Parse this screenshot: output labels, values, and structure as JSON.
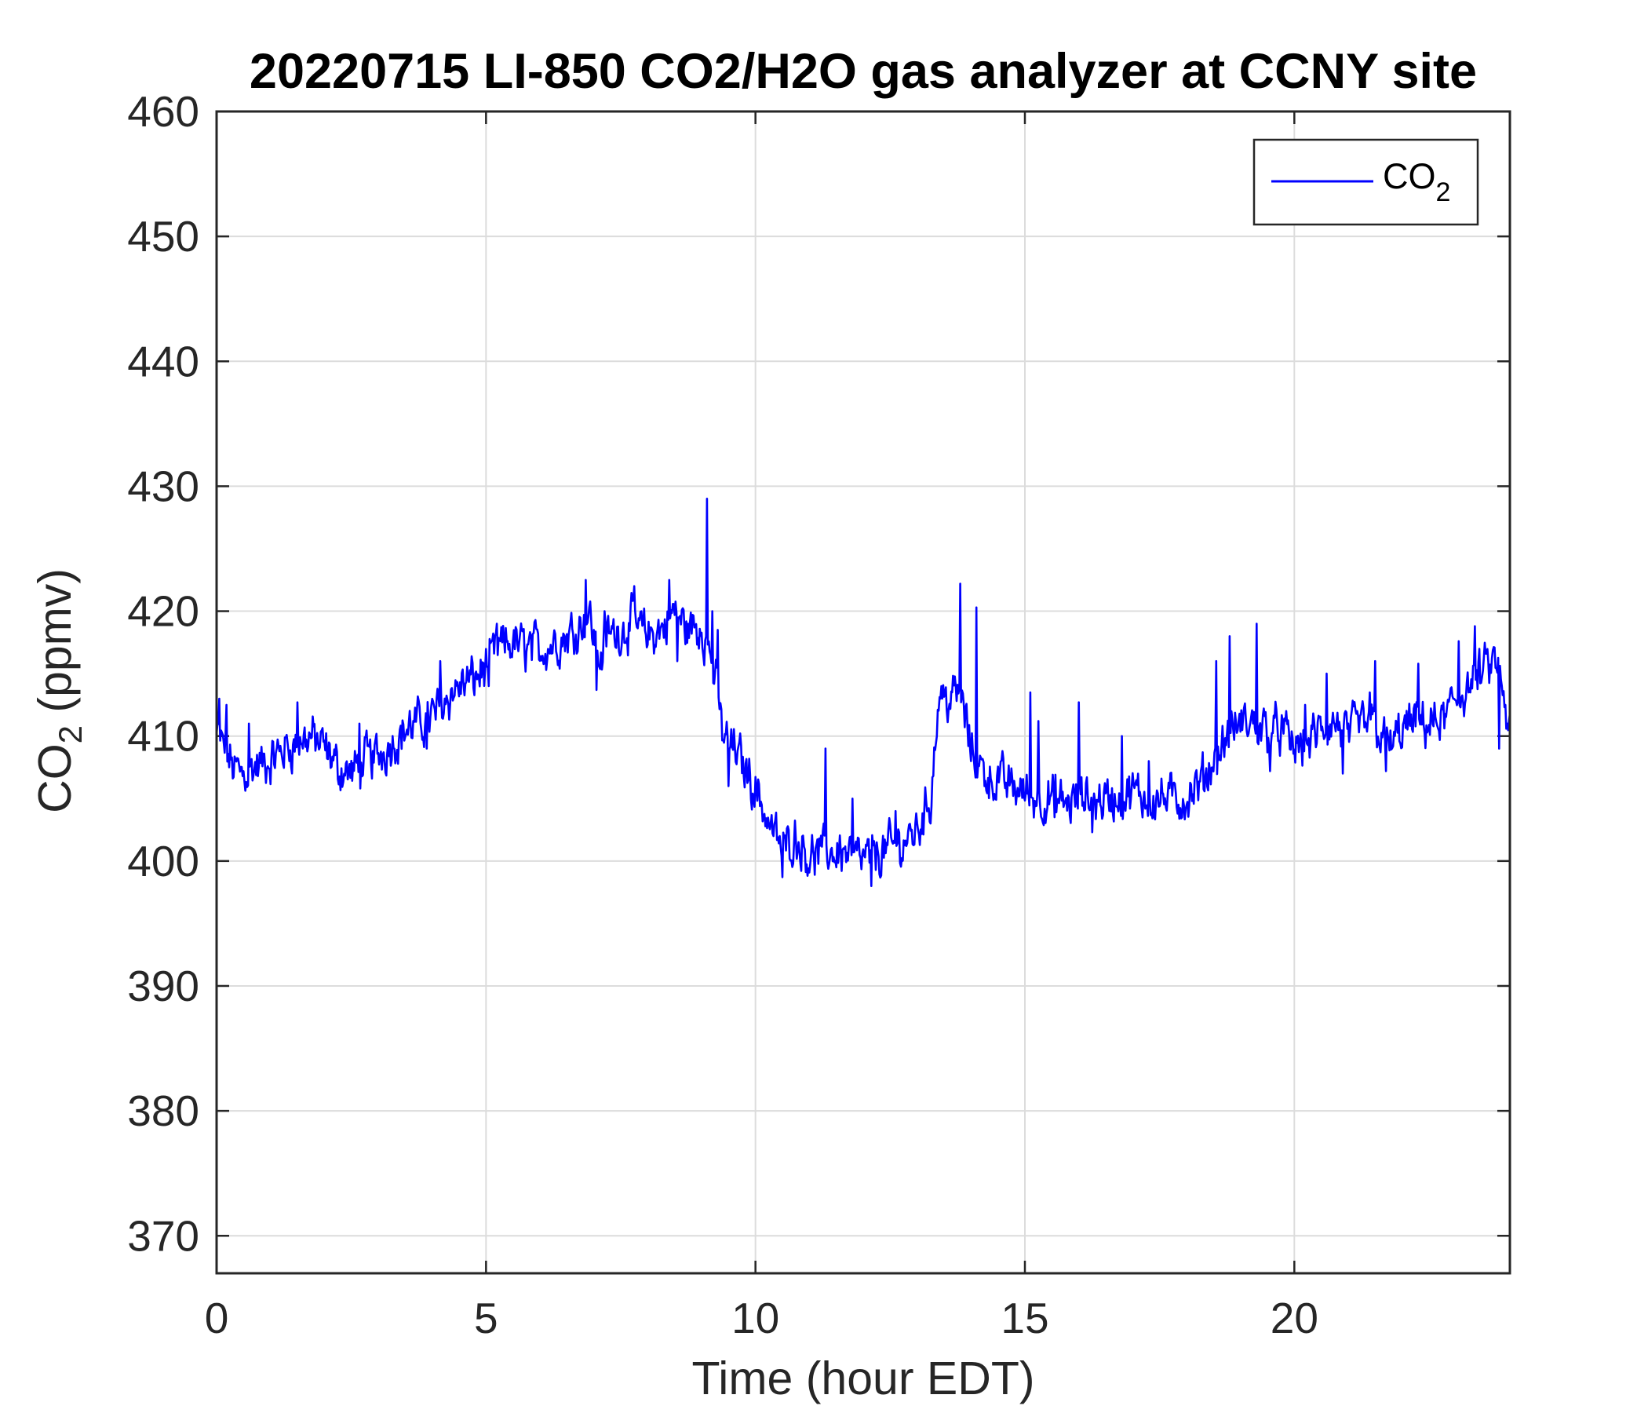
{
  "chart_data": {
    "type": "line",
    "title": "20220715 LI-850 CO2/H2O gas analyzer at CCNY site",
    "xlabel": "Time (hour EDT)",
    "ylabel": {
      "main": "CO",
      "sub": "2",
      "rest": " (ppmv)"
    },
    "xlim": [
      0,
      24
    ],
    "ylim": [
      367,
      460
    ],
    "xticks": [
      0,
      5,
      10,
      15,
      20
    ],
    "yticks": [
      370,
      380,
      390,
      400,
      410,
      420,
      430,
      440,
      450,
      460
    ],
    "grid": true,
    "legend": {
      "position": "top-right",
      "entries": [
        {
          "main": "CO",
          "sub": "2"
        }
      ]
    },
    "series": [
      {
        "color": "#0000ff",
        "x": [
          0,
          0.15,
          0.3,
          0.5,
          0.75,
          1.0,
          1.25,
          1.5,
          1.75,
          2.0,
          2.25,
          2.5,
          2.75,
          3.0,
          3.25,
          3.5,
          3.75,
          4.0,
          4.25,
          4.5,
          4.75,
          5.0,
          5.25,
          5.5,
          5.75,
          6.0,
          6.25,
          6.5,
          6.75,
          6.9,
          7.1,
          7.25,
          7.5,
          7.75,
          8.0,
          8.25,
          8.5,
          8.75,
          9.0,
          9.2,
          9.4,
          9.6,
          9.8,
          10.0,
          10.25,
          10.5,
          10.75,
          11.0,
          11.25,
          11.5,
          11.75,
          12.0,
          12.25,
          12.5,
          12.75,
          13.0,
          13.25,
          13.4,
          13.6,
          13.8,
          14.0,
          14.25,
          14.5,
          14.75,
          15.0,
          15.25,
          15.5,
          15.75,
          16.0,
          16.25,
          16.5,
          16.75,
          17.0,
          17.25,
          17.5,
          17.75,
          18.0,
          18.25,
          18.5,
          18.75,
          19.0,
          19.25,
          19.5,
          19.75,
          20.0,
          20.25,
          20.5,
          20.75,
          21.0,
          21.25,
          21.5,
          21.75,
          22.0,
          22.25,
          22.5,
          22.75,
          23.0,
          23.25,
          23.5,
          23.75,
          24.0
        ],
        "values": [
          410,
          409,
          407.5,
          407,
          407.5,
          408,
          409,
          409.5,
          410,
          409,
          407.5,
          407,
          408,
          408.5,
          409.5,
          410.5,
          411,
          411.5,
          413,
          414,
          414.5,
          415.5,
          417,
          417.5,
          417,
          417,
          417.5,
          418,
          419,
          420,
          416,
          418,
          418.5,
          419,
          418,
          418.5,
          420,
          418.5,
          419,
          416,
          410,
          409,
          407.5,
          406,
          403,
          401,
          402,
          400.5,
          400.5,
          401,
          400.5,
          400,
          400.5,
          401,
          401.5,
          402.5,
          405,
          413,
          413,
          413.5,
          409,
          407,
          406.5,
          406,
          405.5,
          405,
          405,
          404.5,
          405,
          405,
          405,
          405,
          405.5,
          405,
          405,
          405,
          405,
          406,
          408,
          410,
          411,
          411,
          410.5,
          410.5,
          409,
          409.5,
          410.5,
          411,
          410,
          411,
          411,
          409,
          410.5,
          411,
          411,
          411,
          413,
          414,
          415,
          416,
          410
        ],
        "spikes": [
          [
            0.05,
            413
          ],
          [
            0.18,
            412.5
          ],
          [
            0.6,
            411
          ],
          [
            1.5,
            412.7
          ],
          [
            2.65,
            411
          ],
          [
            3.9,
            409
          ],
          [
            4.15,
            416
          ],
          [
            5.05,
            414
          ],
          [
            5.2,
            419
          ],
          [
            6.85,
            422.5
          ],
          [
            7.05,
            413.7
          ],
          [
            7.2,
            420
          ],
          [
            7.75,
            422
          ],
          [
            8.4,
            422.5
          ],
          [
            8.55,
            416
          ],
          [
            8.95,
            417
          ],
          [
            9.1,
            429
          ],
          [
            9.2,
            420
          ],
          [
            9.3,
            418.5
          ],
          [
            9.5,
            406
          ],
          [
            10.5,
            398.7
          ],
          [
            11.3,
            409
          ],
          [
            11.5,
            399.5
          ],
          [
            11.8,
            405
          ],
          [
            12.15,
            398
          ],
          [
            12.6,
            404
          ],
          [
            13.45,
            414
          ],
          [
            13.8,
            422.2
          ],
          [
            14.1,
            420.3
          ],
          [
            14.45,
            405
          ],
          [
            15.1,
            413.5
          ],
          [
            15.25,
            411.2
          ],
          [
            15.55,
            403.5
          ],
          [
            16.0,
            412.7
          ],
          [
            16.25,
            402.3
          ],
          [
            16.8,
            410
          ],
          [
            17.3,
            408
          ],
          [
            18.55,
            416
          ],
          [
            18.8,
            418
          ],
          [
            19.3,
            419
          ],
          [
            19.55,
            407.2
          ],
          [
            20.2,
            412.5
          ],
          [
            20.6,
            415
          ],
          [
            20.9,
            407
          ],
          [
            21.4,
            413.5
          ],
          [
            21.5,
            416
          ],
          [
            21.7,
            407.2
          ],
          [
            22.3,
            415.8
          ],
          [
            23.05,
            417.6
          ],
          [
            23.35,
            418.8
          ],
          [
            23.55,
            416.6
          ],
          [
            23.8,
            409
          ]
        ]
      }
    ]
  }
}
